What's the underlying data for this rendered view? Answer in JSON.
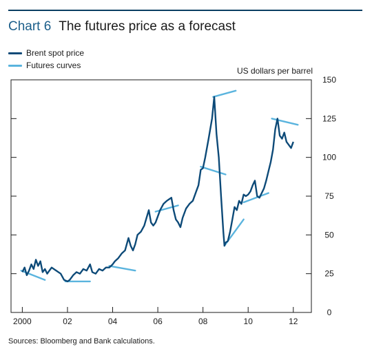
{
  "header": {
    "chart_number": "Chart 6",
    "title": "The futures price as a forecast"
  },
  "legend": [
    {
      "label": "Brent spot price",
      "color": "#0d4a78"
    },
    {
      "label": "Futures curves",
      "color": "#5ab4de"
    }
  ],
  "unit_label": "US dollars per barrel",
  "source": "Sources:  Bloomberg and Bank calculations.",
  "chart_data": {
    "type": "line",
    "title": "The futures price as a forecast",
    "ylabel": "US dollars per barrel",
    "xlabel": "",
    "xlim": [
      1999.5,
      2012.8
    ],
    "ylim": [
      0,
      150
    ],
    "y_ticks": [
      0,
      25,
      50,
      75,
      100,
      125,
      150
    ],
    "x_ticks": [
      {
        "value": 2000,
        "label": "2000"
      },
      {
        "value": 2002,
        "label": "02"
      },
      {
        "value": 2004,
        "label": "04"
      },
      {
        "value": 2006,
        "label": "06"
      },
      {
        "value": 2008,
        "label": "08"
      },
      {
        "value": 2010,
        "label": "10"
      },
      {
        "value": 2012,
        "label": "12"
      }
    ],
    "grid": false,
    "y_axis_side": "right",
    "legend_position": "top-left",
    "series": [
      {
        "name": "Brent spot price",
        "color": "#0d4a78",
        "points": [
          [
            2000.0,
            26
          ],
          [
            2000.1,
            29
          ],
          [
            2000.2,
            24
          ],
          [
            2000.3,
            27
          ],
          [
            2000.4,
            31
          ],
          [
            2000.5,
            28
          ],
          [
            2000.6,
            34
          ],
          [
            2000.7,
            30
          ],
          [
            2000.8,
            33
          ],
          [
            2000.9,
            26
          ],
          [
            2001.0,
            28
          ],
          [
            2001.1,
            25
          ],
          [
            2001.2,
            27
          ],
          [
            2001.3,
            29
          ],
          [
            2001.5,
            27
          ],
          [
            2001.7,
            25
          ],
          [
            2001.85,
            21
          ],
          [
            2002.0,
            20
          ],
          [
            2002.1,
            21
          ],
          [
            2002.25,
            24
          ],
          [
            2002.4,
            26
          ],
          [
            2002.55,
            25
          ],
          [
            2002.7,
            28
          ],
          [
            2002.85,
            27
          ],
          [
            2003.0,
            31
          ],
          [
            2003.1,
            26
          ],
          [
            2003.25,
            25
          ],
          [
            2003.4,
            28
          ],
          [
            2003.55,
            27
          ],
          [
            2003.7,
            29
          ],
          [
            2003.85,
            29
          ],
          [
            2004.0,
            31
          ],
          [
            2004.1,
            33
          ],
          [
            2004.25,
            35
          ],
          [
            2004.4,
            38
          ],
          [
            2004.55,
            40
          ],
          [
            2004.7,
            48
          ],
          [
            2004.8,
            43
          ],
          [
            2004.9,
            40
          ],
          [
            2005.0,
            44
          ],
          [
            2005.1,
            50
          ],
          [
            2005.25,
            52
          ],
          [
            2005.4,
            56
          ],
          [
            2005.5,
            61
          ],
          [
            2005.6,
            66
          ],
          [
            2005.7,
            58
          ],
          [
            2005.8,
            56
          ],
          [
            2005.9,
            58
          ],
          [
            2006.0,
            62
          ],
          [
            2006.1,
            66
          ],
          [
            2006.25,
            70
          ],
          [
            2006.4,
            72
          ],
          [
            2006.5,
            73
          ],
          [
            2006.6,
            74
          ],
          [
            2006.7,
            66
          ],
          [
            2006.8,
            60
          ],
          [
            2006.9,
            58
          ],
          [
            2007.0,
            55
          ],
          [
            2007.1,
            61
          ],
          [
            2007.25,
            67
          ],
          [
            2007.4,
            70
          ],
          [
            2007.55,
            72
          ],
          [
            2007.7,
            78
          ],
          [
            2007.8,
            82
          ],
          [
            2007.9,
            92
          ],
          [
            2008.0,
            93
          ],
          [
            2008.1,
            100
          ],
          [
            2008.25,
            112
          ],
          [
            2008.4,
            125
          ],
          [
            2008.5,
            139
          ],
          [
            2008.6,
            115
          ],
          [
            2008.7,
            100
          ],
          [
            2008.8,
            75
          ],
          [
            2008.9,
            52
          ],
          [
            2008.95,
            43
          ],
          [
            2009.0,
            45
          ],
          [
            2009.1,
            46
          ],
          [
            2009.2,
            52
          ],
          [
            2009.3,
            60
          ],
          [
            2009.4,
            68
          ],
          [
            2009.5,
            66
          ],
          [
            2009.6,
            72
          ],
          [
            2009.7,
            70
          ],
          [
            2009.8,
            76
          ],
          [
            2009.9,
            75
          ],
          [
            2010.0,
            76
          ],
          [
            2010.1,
            78
          ],
          [
            2010.2,
            82
          ],
          [
            2010.3,
            85
          ],
          [
            2010.4,
            75
          ],
          [
            2010.5,
            74
          ],
          [
            2010.6,
            77
          ],
          [
            2010.7,
            80
          ],
          [
            2010.8,
            85
          ],
          [
            2010.9,
            91
          ],
          [
            2011.0,
            97
          ],
          [
            2011.1,
            105
          ],
          [
            2011.2,
            118
          ],
          [
            2011.3,
            125
          ],
          [
            2011.4,
            114
          ],
          [
            2011.5,
            112
          ],
          [
            2011.6,
            116
          ],
          [
            2011.7,
            110
          ],
          [
            2011.8,
            108
          ],
          [
            2011.9,
            106
          ],
          [
            2012.0,
            110
          ]
        ]
      },
      {
        "name": "Futures curves",
        "color": "#5ab4de",
        "segments": [
          [
            [
              1999.95,
              27
            ],
            [
              2001.0,
              21
            ]
          ],
          [
            [
              2001.9,
              20
            ],
            [
              2003.0,
              20
            ]
          ],
          [
            [
              2003.85,
              30
            ],
            [
              2005.0,
              27
            ]
          ],
          [
            [
              2005.9,
              65
            ],
            [
              2006.9,
              69
            ]
          ],
          [
            [
              2007.9,
              94
            ],
            [
              2009.0,
              89
            ]
          ],
          [
            [
              2008.45,
              139
            ],
            [
              2009.45,
              143
            ]
          ],
          [
            [
              2008.95,
              43
            ],
            [
              2009.8,
              60
            ]
          ],
          [
            [
              2009.8,
              71
            ],
            [
              2010.9,
              77
            ]
          ],
          [
            [
              2011.05,
              125
            ],
            [
              2012.2,
              121
            ]
          ]
        ]
      }
    ]
  }
}
